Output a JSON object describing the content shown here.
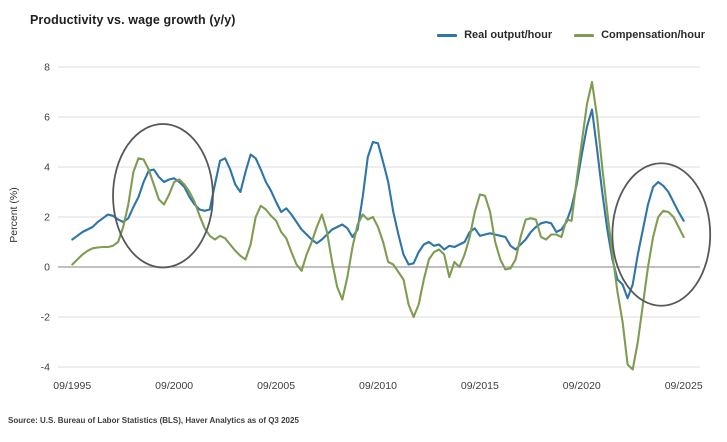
{
  "header": {
    "title": "Productivity vs. wage growth (y/y)"
  },
  "source": {
    "text": "Source: U.S. Bureau of Labor Statistics (BLS), Haver Analytics as of Q3 2025"
  },
  "chart_data": {
    "type": "line",
    "title": "Productivity vs. wage growth (y/y)",
    "xlabel": "",
    "ylabel": "Percent (%)",
    "ylim": [
      -4,
      8
    ],
    "yticks": [
      8,
      6,
      4,
      2,
      0,
      -2,
      -4
    ],
    "grid": true,
    "legend_position": "top-right",
    "x_start": 1995.75,
    "x_step": 0.25,
    "xticks": [
      {
        "label": "09/1995",
        "year": 1995.75
      },
      {
        "label": "09/2000",
        "year": 2000.75
      },
      {
        "label": "09/2005",
        "year": 2005.75
      },
      {
        "label": "09/2010",
        "year": 2010.75
      },
      {
        "label": "09/2015",
        "year": 2015.75
      },
      {
        "label": "09/2020",
        "year": 2020.75
      },
      {
        "label": "09/2025",
        "year": 2025.75
      }
    ],
    "series": [
      {
        "name": "Real output/hour",
        "color": "#2e75a8",
        "values": [
          1.1,
          1.25,
          1.4,
          1.5,
          1.6,
          1.8,
          1.95,
          2.1,
          2.05,
          1.9,
          1.8,
          1.95,
          2.4,
          2.8,
          3.4,
          3.85,
          3.9,
          3.6,
          3.4,
          3.5,
          3.55,
          3.4,
          3.2,
          2.8,
          2.5,
          2.3,
          2.25,
          2.3,
          3.3,
          4.25,
          4.35,
          3.9,
          3.3,
          3.0,
          3.8,
          4.5,
          4.35,
          3.9,
          3.4,
          3.05,
          2.6,
          2.2,
          2.35,
          2.1,
          1.8,
          1.5,
          1.3,
          1.1,
          0.95,
          1.1,
          1.3,
          1.5,
          1.6,
          1.7,
          1.55,
          1.2,
          1.5,
          2.8,
          4.4,
          5.0,
          4.95,
          4.2,
          3.4,
          2.2,
          1.3,
          0.5,
          0.1,
          0.15,
          0.6,
          0.9,
          1.0,
          0.85,
          0.9,
          0.7,
          0.85,
          0.8,
          0.9,
          1.0,
          1.4,
          1.55,
          1.25,
          1.3,
          1.35,
          1.3,
          1.25,
          1.2,
          0.85,
          0.7,
          0.9,
          1.1,
          1.4,
          1.6,
          1.75,
          1.8,
          1.75,
          1.4,
          1.5,
          1.8,
          2.4,
          3.3,
          4.5,
          5.6,
          6.3,
          4.7,
          3.0,
          1.5,
          0.3,
          -0.5,
          -0.7,
          -1.25,
          -0.7,
          0.5,
          1.5,
          2.5,
          3.2,
          3.4,
          3.25,
          3.0,
          2.6,
          2.2,
          1.85
        ]
      },
      {
        "name": "Compensation/hour",
        "color": "#7f9c52",
        "values": [
          0.1,
          0.3,
          0.5,
          0.65,
          0.75,
          0.78,
          0.8,
          0.8,
          0.85,
          1.0,
          1.6,
          2.5,
          3.8,
          4.35,
          4.3,
          3.9,
          3.3,
          2.7,
          2.5,
          2.9,
          3.4,
          3.5,
          3.3,
          3.0,
          2.6,
          2.05,
          1.55,
          1.25,
          1.1,
          1.25,
          1.15,
          0.9,
          0.65,
          0.45,
          0.3,
          0.9,
          2.0,
          2.45,
          2.3,
          2.05,
          1.85,
          1.4,
          1.15,
          0.6,
          0.1,
          -0.15,
          0.5,
          1.0,
          1.6,
          2.1,
          1.4,
          0.2,
          -0.8,
          -1.3,
          -0.4,
          0.8,
          1.7,
          2.1,
          1.9,
          2.0,
          1.6,
          1.0,
          0.2,
          0.1,
          -0.2,
          -0.5,
          -1.5,
          -2.0,
          -1.5,
          -0.5,
          0.3,
          0.6,
          0.7,
          0.5,
          -0.4,
          0.2,
          0.0,
          0.5,
          1.2,
          2.2,
          2.9,
          2.85,
          2.2,
          1.0,
          0.3,
          -0.1,
          -0.05,
          0.3,
          1.2,
          1.9,
          1.95,
          1.9,
          1.2,
          1.1,
          1.3,
          1.3,
          1.2,
          1.9,
          1.85,
          3.5,
          5.0,
          6.5,
          7.4,
          6.0,
          4.0,
          2.2,
          0.5,
          -1.0,
          -2.2,
          -3.9,
          -4.1,
          -3.0,
          -1.5,
          0.0,
          1.2,
          2.0,
          2.25,
          2.2,
          2.0,
          1.6,
          1.2
        ]
      }
    ],
    "annotations": [
      {
        "type": "ellipse",
        "cx_year": 2000.2,
        "cy": 2.85,
        "rx_years": 2.45,
        "ry_units": 2.87,
        "color": "#57585a"
      },
      {
        "type": "ellipse",
        "cx_year": 2024.65,
        "cy": 1.3,
        "rx_years": 2.4,
        "ry_units": 2.85,
        "color": "#57585a"
      }
    ],
    "colors": {
      "grid": "#dedede",
      "zero_line": "#9a9a9a",
      "tick_text": "#3f3f3f"
    }
  }
}
